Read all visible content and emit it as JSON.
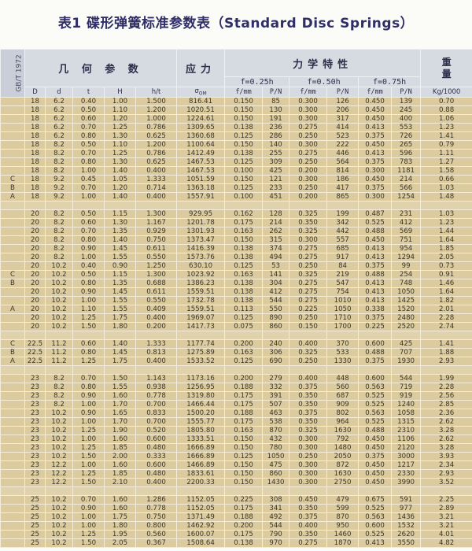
{
  "title": "表1  碟形弹簧标准参数表（Standard Disc Springs）",
  "header": {
    "standard": "GB/T 1972",
    "geometry": "几 何 参 数",
    "stress": "应力",
    "mechanics": "力学特性",
    "weight_top": "重",
    "weight_bottom": "量",
    "f1": "f=0.25h",
    "f2": "f=0.50h",
    "f3": "f=0.75h",
    "columns": [
      "D",
      "d",
      "t",
      "H",
      "h/t",
      "σ",
      "f/mm",
      "P/N",
      "f/mm",
      "P/N",
      "f/mm",
      "P/N",
      "Kg/1000"
    ],
    "sigma_sub": "OM"
  },
  "colors": {
    "title": "#2f2e66",
    "header_bg": "#d6dbe2",
    "cell_bg": "#dccb9f"
  },
  "rows": [
    [
      "",
      "18",
      "6.2",
      "0.40",
      "1.00",
      "1.500",
      "816.41",
      "0.150",
      "85",
      "0.300",
      "126",
      "0.450",
      "139",
      "0.70"
    ],
    [
      "",
      "18",
      "6.2",
      "0.50",
      "1.10",
      "1.200",
      "1020.51",
      "0.150",
      "130",
      "0.300",
      "206",
      "0.450",
      "245",
      "0.88"
    ],
    [
      "",
      "18",
      "6.2",
      "0.60",
      "1.20",
      "1.000",
      "1224.61",
      "0.150",
      "191",
      "0.300",
      "317",
      "0.450",
      "400",
      "1.06"
    ],
    [
      "",
      "18",
      "6.2",
      "0.70",
      "1.25",
      "0.786",
      "1309.65",
      "0.138",
      "236",
      "0.275",
      "414",
      "0.413",
      "553",
      "1.23"
    ],
    [
      "",
      "18",
      "6.2",
      "0.80",
      "1.30",
      "0.625",
      "1360.68",
      "0.125",
      "286",
      "0.250",
      "523",
      "0.375",
      "726",
      "1.41"
    ],
    [
      "",
      "18",
      "8.2",
      "0.50",
      "1.10",
      "1.200",
      "1100.64",
      "0.150",
      "140",
      "0.300",
      "222",
      "0.450",
      "265",
      "0.79"
    ],
    [
      "",
      "18",
      "8.2",
      "0.70",
      "1.25",
      "0.786",
      "1412.49",
      "0.138",
      "255",
      "0.275",
      "446",
      "0.413",
      "596",
      "1.11"
    ],
    [
      "",
      "18",
      "8.2",
      "0.80",
      "1.30",
      "0.625",
      "1467.53",
      "0.125",
      "309",
      "0.250",
      "564",
      "0.375",
      "783",
      "1.27"
    ],
    [
      "",
      "18",
      "8.2",
      "1.00",
      "1.40",
      "0.400",
      "1467.53",
      "0.100",
      "425",
      "0.200",
      "814",
      "0.300",
      "1181",
      "1.58"
    ],
    [
      "C",
      "18",
      "9.2",
      "0.45",
      "1.05",
      "1.333",
      "1051.59",
      "0.150",
      "121",
      "0.300",
      "186",
      "0.450",
      "214",
      "0.66"
    ],
    [
      "B",
      "18",
      "9.2",
      "0.70",
      "1.20",
      "0.714",
      "1363.18",
      "0.125",
      "233",
      "0.250",
      "417",
      "0.375",
      "566",
      "1.03"
    ],
    [
      "A",
      "18",
      "9.2",
      "1.00",
      "1.40",
      "0.400",
      "1557.91",
      "0.100",
      "451",
      "0.200",
      "865",
      "0.300",
      "1254",
      "1.48"
    ],
    null,
    [
      "",
      "20",
      "8.2",
      "0.50",
      "1.15",
      "1.300",
      "929.95",
      "0.162",
      "128",
      "0.325",
      "199",
      "0.487",
      "231",
      "1.03"
    ],
    [
      "",
      "20",
      "8.2",
      "0.60",
      "1.30",
      "1.167",
      "1201.78",
      "0.175",
      "214",
      "0.350",
      "342",
      "0.525",
      "412",
      "1.23"
    ],
    [
      "",
      "20",
      "8.2",
      "0.70",
      "1.35",
      "0.929",
      "1301.93",
      "0.163",
      "262",
      "0.325",
      "442",
      "0.488",
      "569",
      "1.44"
    ],
    [
      "",
      "20",
      "8.2",
      "0.80",
      "1.40",
      "0.750",
      "1373.47",
      "0.150",
      "315",
      "0.300",
      "557",
      "0.450",
      "751",
      "1.64"
    ],
    [
      "",
      "20",
      "8.2",
      "0.90",
      "1.45",
      "0.611",
      "1416.39",
      "0.138",
      "374",
      "0.275",
      "685",
      "0.413",
      "954",
      "1.85"
    ],
    [
      "",
      "20",
      "8.2",
      "1.00",
      "1.55",
      "0.550",
      "1573.76",
      "0.138",
      "494",
      "0.275",
      "917",
      "0.413",
      "1294",
      "2.05"
    ],
    [
      "",
      "20",
      "10.2",
      "0.40",
      "0.90",
      "1.250",
      "630.10",
      "0.125",
      "53",
      "0.250",
      "84",
      "0.375",
      "99",
      "0.73"
    ],
    [
      "C",
      "20",
      "10.2",
      "0.50",
      "1.15",
      "1.300",
      "1023.92",
      "0.163",
      "141",
      "0.325",
      "219",
      "0.488",
      "254",
      "0.91"
    ],
    [
      "B",
      "20",
      "10.2",
      "0.80",
      "1.35",
      "0.688",
      "1386.23",
      "0.138",
      "304",
      "0.275",
      "547",
      "0.413",
      "748",
      "1.46"
    ],
    [
      "",
      "20",
      "10.2",
      "0.90",
      "1.45",
      "0.611",
      "1559.51",
      "0.138",
      "412",
      "0.275",
      "754",
      "0.413",
      "1050",
      "1.64"
    ],
    [
      "",
      "20",
      "10.2",
      "1.00",
      "1.55",
      "0.550",
      "1732.78",
      "0.138",
      "544",
      "0.275",
      "1010",
      "0.413",
      "1425",
      "1.82"
    ],
    [
      "A",
      "20",
      "10.2",
      "1.10",
      "1.55",
      "0.409",
      "1559.51",
      "0.113",
      "550",
      "0.225",
      "1050",
      "0.338",
      "1520",
      "2.01"
    ],
    [
      "",
      "20",
      "10.2",
      "1.25",
      "1.75",
      "0.400",
      "1969.07",
      "0.125",
      "890",
      "0.250",
      "1710",
      "0.375",
      "2480",
      "2.28"
    ],
    [
      "",
      "20",
      "10.2",
      "1.50",
      "1.80",
      "0.200",
      "1417.73",
      "0.075",
      "860",
      "0.150",
      "1700",
      "0.225",
      "2520",
      "2.74"
    ],
    null,
    [
      "C",
      "22.5",
      "11.2",
      "0.60",
      "1.40",
      "1.333",
      "1177.74",
      "0.200",
      "240",
      "0.400",
      "370",
      "0.600",
      "425",
      "1.41"
    ],
    [
      "B",
      "22.5",
      "11.2",
      "0.80",
      "1.45",
      "0.813",
      "1275.89",
      "0.163",
      "306",
      "0.325",
      "533",
      "0.488",
      "707",
      "1.88"
    ],
    [
      "A",
      "22.5",
      "11.2",
      "1.25",
      "1.75",
      "0.400",
      "1533.52",
      "0.125",
      "690",
      "0.250",
      "1330",
      "0.375",
      "1930",
      "2.93"
    ],
    null,
    [
      "",
      "23",
      "8.2",
      "0.70",
      "1.50",
      "1.143",
      "1173.16",
      "0.200",
      "279",
      "0.400",
      "448",
      "0.600",
      "544",
      "1.99"
    ],
    [
      "",
      "23",
      "8.2",
      "0.80",
      "1.55",
      "0.938",
      "1256.95",
      "0.188",
      "332",
      "0.375",
      "560",
      "0.563",
      "719",
      "2.28"
    ],
    [
      "",
      "23",
      "8.2",
      "0.90",
      "1.60",
      "0.778",
      "1319.80",
      "0.175",
      "391",
      "0.350",
      "687",
      "0.525",
      "919",
      "2.56"
    ],
    [
      "",
      "23",
      "8.2",
      "1.00",
      "1.70",
      "0.700",
      "1466.44",
      "0.175",
      "507",
      "0.350",
      "909",
      "0.525",
      "1240",
      "2.85"
    ],
    [
      "",
      "23",
      "10.2",
      "0.90",
      "1.65",
      "0.833",
      "1500.20",
      "0.188",
      "463",
      "0.375",
      "802",
      "0.563",
      "1058",
      "2.36"
    ],
    [
      "",
      "23",
      "10.2",
      "1.00",
      "1.70",
      "0.700",
      "1555.77",
      "0.175",
      "538",
      "0.350",
      "964",
      "0.525",
      "1315",
      "2.62"
    ],
    [
      "",
      "23",
      "10.2",
      "1.25",
      "1.90",
      "0.520",
      "1805.80",
      "0.163",
      "870",
      "0.325",
      "1630",
      "0.488",
      "2310",
      "3.28"
    ],
    [
      "",
      "23",
      "10.2",
      "1.00",
      "1.60",
      "0.600",
      "1333.51",
      "0.150",
      "432",
      "0.300",
      "792",
      "0.450",
      "1106",
      "2.62"
    ],
    [
      "",
      "23",
      "10.2",
      "1.25",
      "1.85",
      "0.480",
      "1666.89",
      "0.150",
      "780",
      "0.300",
      "1480",
      "0.450",
      "2120",
      "3.28"
    ],
    [
      "",
      "23",
      "10.2",
      "1.50",
      "2.00",
      "0.333",
      "1666.89",
      "0.125",
      "1050",
      "0.250",
      "2050",
      "0.375",
      "3000",
      "3.93"
    ],
    [
      "",
      "23",
      "12.2",
      "1.00",
      "1.60",
      "0.600",
      "1466.89",
      "0.150",
      "475",
      "0.300",
      "872",
      "0.450",
      "1217",
      "2.34"
    ],
    [
      "",
      "23",
      "12.2",
      "1.25",
      "1.85",
      "0.480",
      "1833.61",
      "0.150",
      "860",
      "0.300",
      "1630",
      "0.450",
      "2330",
      "2.93"
    ],
    [
      "",
      "23",
      "12.2",
      "1.50",
      "2.10",
      "0.400",
      "2200.33",
      "0.150",
      "1430",
      "0.300",
      "2750",
      "0.450",
      "3990",
      "3.52"
    ],
    null,
    [
      "",
      "25",
      "10.2",
      "0.70",
      "1.60",
      "1.286",
      "1152.05",
      "0.225",
      "308",
      "0.450",
      "479",
      "0.675",
      "591",
      "2.25"
    ],
    [
      "",
      "25",
      "10.2",
      "0.90",
      "1.60",
      "0.778",
      "1152.05",
      "0.175",
      "341",
      "0.350",
      "599",
      "0.525",
      "977",
      "2.89"
    ],
    [
      "",
      "25",
      "10.2",
      "1.00",
      "1.75",
      "0.750",
      "1371.49",
      "0.188",
      "492",
      "0.375",
      "870",
      "0.563",
      "1436",
      "3.21"
    ],
    [
      "",
      "25",
      "10.2",
      "1.00",
      "1.80",
      "0.800",
      "1462.92",
      "0.200",
      "544",
      "0.400",
      "950",
      "0.600",
      "1532",
      "3.21"
    ],
    [
      "",
      "25",
      "10.2",
      "1.25",
      "1.95",
      "0.560",
      "1600.07",
      "0.175",
      "790",
      "0.350",
      "1460",
      "0.525",
      "2620",
      "4.01"
    ],
    [
      "",
      "25",
      "10.2",
      "1.50",
      "2.05",
      "0.367",
      "1508.64",
      "0.138",
      "970",
      "0.275",
      "1870",
      "0.413",
      "3550",
      "4.82"
    ]
  ]
}
